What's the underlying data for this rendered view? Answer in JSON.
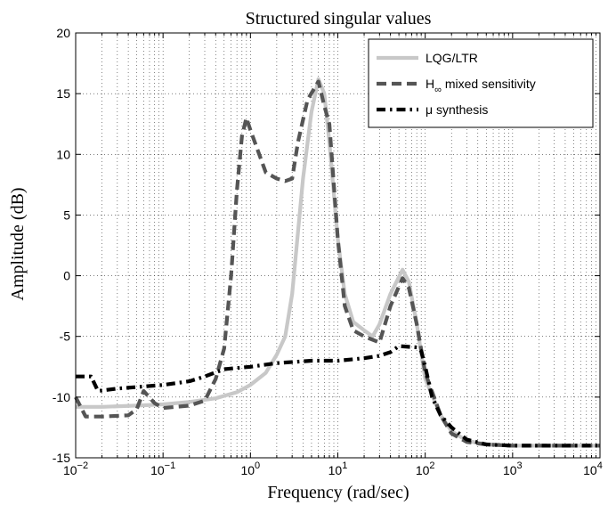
{
  "chart_data": {
    "type": "line",
    "title": "Structured singular values",
    "xlabel": "Frequency (rad/sec)",
    "ylabel": "Amplitude (dB)",
    "x_scale": "log",
    "xlim": [
      0.01,
      10000
    ],
    "ylim": [
      -15,
      20
    ],
    "x_ticks": [
      {
        "value": 0.01,
        "base": "10",
        "exp": "−2"
      },
      {
        "value": 0.1,
        "base": "10",
        "exp": "−1"
      },
      {
        "value": 1,
        "base": "10",
        "exp": "0"
      },
      {
        "value": 10,
        "base": "10",
        "exp": "1"
      },
      {
        "value": 100,
        "base": "10",
        "exp": "2"
      },
      {
        "value": 1000,
        "base": "10",
        "exp": "3"
      },
      {
        "value": 10000,
        "base": "10",
        "exp": "4"
      }
    ],
    "y_ticks": [
      {
        "value": 20,
        "label": "20"
      },
      {
        "value": 15,
        "label": "15"
      },
      {
        "value": 10,
        "label": "10"
      },
      {
        "value": 5,
        "label": "5"
      },
      {
        "value": 0,
        "label": "0"
      },
      {
        "value": -5,
        "label": "-5"
      },
      {
        "value": -10,
        "label": "-10"
      },
      {
        "value": -15,
        "label": "-15"
      }
    ],
    "grid": true,
    "legend_position": "top-right",
    "series": [
      {
        "name": "LQG/LTR",
        "color": "#c8c8c8",
        "style": "solid",
        "points": [
          [
            0.01,
            -10.8
          ],
          [
            0.02,
            -10.8
          ],
          [
            0.05,
            -10.7
          ],
          [
            0.1,
            -10.6
          ],
          [
            0.2,
            -10.4
          ],
          [
            0.4,
            -10.1
          ],
          [
            0.7,
            -9.6
          ],
          [
            1.0,
            -9.0
          ],
          [
            1.5,
            -8.0
          ],
          [
            2.0,
            -6.5
          ],
          [
            2.5,
            -5.0
          ],
          [
            3.0,
            -1.5
          ],
          [
            4.0,
            8.0
          ],
          [
            5.0,
            13.5
          ],
          [
            6.0,
            16.2
          ],
          [
            7.0,
            15.0
          ],
          [
            8.0,
            11.0
          ],
          [
            10.0,
            3.0
          ],
          [
            12.0,
            -1.5
          ],
          [
            15.0,
            -3.8
          ],
          [
            20.0,
            -4.5
          ],
          [
            25.0,
            -5.0
          ],
          [
            30.0,
            -4.0
          ],
          [
            40.0,
            -1.5
          ],
          [
            55.0,
            0.5
          ],
          [
            65.0,
            -0.5
          ],
          [
            80.0,
            -4.0
          ],
          [
            100.0,
            -8.5
          ],
          [
            150.0,
            -11.5
          ],
          [
            200.0,
            -12.8
          ],
          [
            300.0,
            -13.6
          ],
          [
            500.0,
            -13.9
          ],
          [
            1000.0,
            -14.0
          ],
          [
            10000.0,
            -14.0
          ]
        ]
      },
      {
        "name": "mixed sensitivity",
        "color": "#555555",
        "style": "dashed",
        "points": [
          [
            0.01,
            -10.0
          ],
          [
            0.013,
            -11.6
          ],
          [
            0.02,
            -11.6
          ],
          [
            0.04,
            -11.5
          ],
          [
            0.05,
            -11.0
          ],
          [
            0.06,
            -9.5
          ],
          [
            0.08,
            -10.5
          ],
          [
            0.1,
            -10.9
          ],
          [
            0.2,
            -10.7
          ],
          [
            0.3,
            -10.3
          ],
          [
            0.4,
            -8.5
          ],
          [
            0.5,
            -6.0
          ],
          [
            0.6,
            0.0
          ],
          [
            0.7,
            7.0
          ],
          [
            0.8,
            11.5
          ],
          [
            0.9,
            13.0
          ],
          [
            1.0,
            12.0
          ],
          [
            1.5,
            8.5
          ],
          [
            2.0,
            8.0
          ],
          [
            2.5,
            7.8
          ],
          [
            3.0,
            8.0
          ],
          [
            3.5,
            11.0
          ],
          [
            4.5,
            14.5
          ],
          [
            6.0,
            16.0
          ],
          [
            7.0,
            14.0
          ],
          [
            8.0,
            12.5
          ],
          [
            10.0,
            3.0
          ],
          [
            12.0,
            -2.5
          ],
          [
            15.0,
            -4.5
          ],
          [
            20.0,
            -5.0
          ],
          [
            30.0,
            -5.5
          ],
          [
            40.0,
            -2.5
          ],
          [
            55.0,
            -0.2
          ],
          [
            65.0,
            -1.0
          ],
          [
            80.0,
            -4.0
          ],
          [
            100.0,
            -8.0
          ],
          [
            150.0,
            -11.5
          ],
          [
            200.0,
            -13.0
          ],
          [
            300.0,
            -13.7
          ],
          [
            500.0,
            -13.9
          ],
          [
            1000.0,
            -14.0
          ],
          [
            10000.0,
            -14.0
          ]
        ]
      },
      {
        "name": "μ synthesis",
        "color": "#000000",
        "style": "dashdot",
        "points": [
          [
            0.01,
            -8.3
          ],
          [
            0.015,
            -8.3
          ],
          [
            0.018,
            -9.5
          ],
          [
            0.03,
            -9.3
          ],
          [
            0.1,
            -9.0
          ],
          [
            0.2,
            -8.7
          ],
          [
            0.3,
            -8.3
          ],
          [
            0.5,
            -7.7
          ],
          [
            1.0,
            -7.5
          ],
          [
            2.0,
            -7.2
          ],
          [
            5.0,
            -7.0
          ],
          [
            10.0,
            -7.0
          ],
          [
            20.0,
            -6.8
          ],
          [
            30.0,
            -6.6
          ],
          [
            40.0,
            -6.3
          ],
          [
            50.0,
            -5.8
          ],
          [
            80.0,
            -5.9
          ],
          [
            90.0,
            -6.2
          ],
          [
            100.0,
            -7.5
          ],
          [
            120.0,
            -10.0
          ],
          [
            150.0,
            -11.5
          ],
          [
            200.0,
            -12.5
          ],
          [
            300.0,
            -13.5
          ],
          [
            500.0,
            -13.9
          ],
          [
            1000.0,
            -14.0
          ],
          [
            10000.0,
            -14.0
          ]
        ]
      }
    ],
    "legend": [
      {
        "main": "LQG/LTR",
        "pre": "",
        "sub": ""
      },
      {
        "main": " mixed sensitivity",
        "pre": "H",
        "sub": "∞"
      },
      {
        "main": "μ synthesis",
        "pre": "",
        "sub": ""
      }
    ]
  }
}
